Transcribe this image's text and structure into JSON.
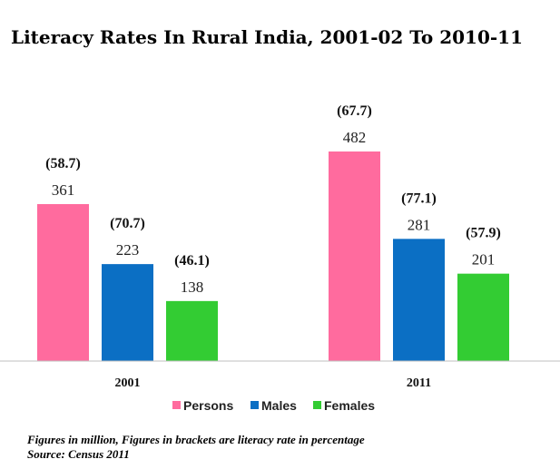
{
  "chart_data": {
    "type": "bar",
    "title": "Literacy Rates In Rural India, 2001-02 To 2010-11",
    "categories": [
      "2001",
      "2011"
    ],
    "series": [
      {
        "name": "Persons",
        "color": "#ff6b9e",
        "values": [
          361,
          482
        ],
        "rate_labels": [
          "(58.7)",
          "(67.7)"
        ]
      },
      {
        "name": "Males",
        "color": "#0b6fc4",
        "values": [
          223,
          281
        ],
        "rate_labels": [
          "(70.7)",
          "(77.1)"
        ]
      },
      {
        "name": "Females",
        "color": "#33cc33",
        "values": [
          138,
          201
        ],
        "rate_labels": [
          "(46.1)",
          "(57.9)"
        ]
      }
    ],
    "ylim": [
      0,
      600
    ],
    "grid": false,
    "legend_position": "bottom"
  },
  "notes": {
    "line1": "Figures in million, Figures in brackets are literacy rate in percentage",
    "line2": "Source: Census 2011"
  }
}
